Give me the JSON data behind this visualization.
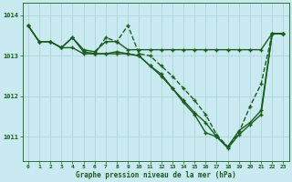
{
  "background_color": "#c8eaf0",
  "grid_color": "#b0d8d8",
  "line_color": "#1a5c1a",
  "title": "Graphe pression niveau de la mer (hPa)",
  "xlim": [
    -0.5,
    23.5
  ],
  "ylim": [
    1010.4,
    1014.3
  ],
  "yticks": [
    1011,
    1012,
    1013,
    1014
  ],
  "xticks": [
    0,
    1,
    2,
    3,
    4,
    5,
    6,
    7,
    8,
    9,
    10,
    11,
    12,
    13,
    14,
    15,
    16,
    17,
    18,
    19,
    20,
    21,
    22,
    23
  ],
  "series": [
    {
      "x": [
        0,
        1,
        2,
        3,
        4,
        5,
        6,
        7,
        8,
        9,
        10,
        11,
        12,
        13,
        14,
        15,
        16,
        17,
        18,
        19,
        20,
        21,
        22,
        23
      ],
      "y": [
        1013.75,
        1013.35,
        1013.35,
        1013.2,
        1013.45,
        1013.15,
        1013.1,
        1013.35,
        1013.35,
        1013.15,
        1013.15,
        1013.15,
        1013.15,
        1013.15,
        1013.15,
        1013.15,
        1013.15,
        1013.15,
        1013.15,
        1013.15,
        1013.15,
        1013.15,
        1013.55,
        1013.55
      ],
      "linestyle": "-",
      "marker": "+",
      "linewidth": 1.0,
      "markersize": 3.5
    },
    {
      "x": [
        5,
        6,
        7,
        8,
        9,
        10,
        11,
        12,
        13,
        14,
        15,
        16,
        17,
        18,
        19,
        20,
        21,
        22,
        23
      ],
      "y": [
        1013.1,
        1013.05,
        1013.45,
        1013.35,
        1013.75,
        1013.05,
        1013.0,
        1012.75,
        1012.5,
        1012.2,
        1011.9,
        1011.55,
        1011.05,
        1010.75,
        1011.1,
        1011.75,
        1012.3,
        1013.55,
        1013.55
      ],
      "linestyle": "--",
      "marker": "+",
      "linewidth": 1.0,
      "markersize": 3.5
    },
    {
      "x": [
        0,
        1,
        2,
        3,
        4,
        5,
        6,
        7,
        8,
        9,
        10,
        11,
        12,
        13,
        14,
        15,
        16,
        17,
        18,
        19,
        20,
        21,
        22,
        23
      ],
      "y": [
        1013.75,
        1013.35,
        1013.35,
        1013.2,
        1013.45,
        1013.1,
        1013.05,
        1013.05,
        1013.1,
        1013.05,
        1013.0,
        1012.75,
        1012.55,
        1012.2,
        1011.9,
        1011.6,
        1011.35,
        1011.0,
        1010.75,
        1011.15,
        1011.35,
        1011.65,
        1013.55,
        1013.55
      ],
      "linestyle": "-",
      "marker": "+",
      "linewidth": 1.0,
      "markersize": 3.5
    },
    {
      "x": [
        0,
        1,
        2,
        3,
        4,
        5,
        6,
        7,
        8,
        9,
        10,
        11,
        12,
        13,
        14,
        15,
        16,
        17,
        18,
        19,
        20,
        21,
        22,
        23
      ],
      "y": [
        1013.75,
        1013.35,
        1013.35,
        1013.2,
        1013.2,
        1013.05,
        1013.05,
        1013.05,
        1013.05,
        1013.05,
        1013.0,
        1012.75,
        1012.5,
        1012.2,
        1011.85,
        1011.55,
        1011.1,
        1011.0,
        1010.72,
        1011.05,
        1011.3,
        1011.55,
        1013.55,
        1013.55
      ],
      "linestyle": "-",
      "marker": "+",
      "linewidth": 1.0,
      "markersize": 3.5
    }
  ]
}
